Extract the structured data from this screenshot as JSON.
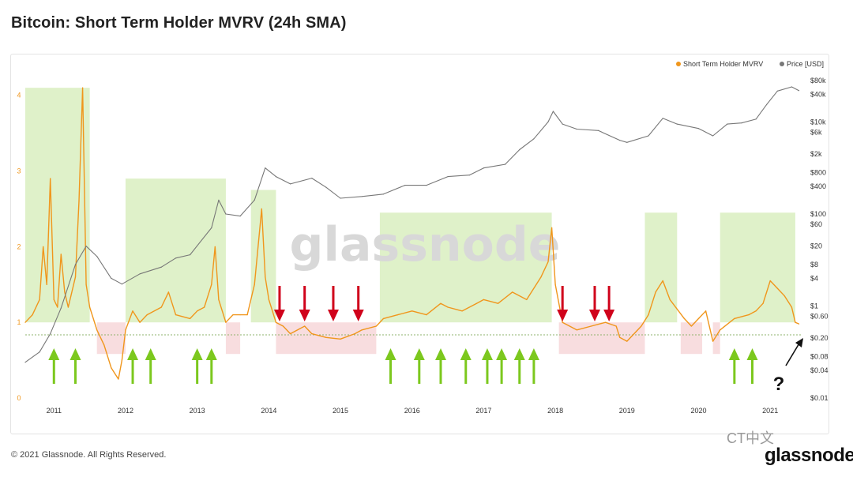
{
  "title": "Bitcoin: Short Term Holder MVRV (24h SMA)",
  "footer": "© 2021 Glassnode. All Rights Reserved.",
  "watermark": "glassnode",
  "wechat_label": "CT中文",
  "brand": "glassnode",
  "question_mark": "?",
  "colors": {
    "mvrv": "#f0961c",
    "price": "#777777",
    "green_zone": "#d9efc0",
    "red_zone": "#f7d9dc",
    "green_arrow": "#7cc81e",
    "red_arrow": "#d0021b",
    "baseline": "#8fb36e"
  },
  "chart_data": {
    "type": "line",
    "title": "Bitcoin: Short Term Holder MVRV (24h SMA)",
    "legend": {
      "placement": "top-right",
      "entries": [
        "Short Term Holder MVRV",
        "Price [USD]"
      ]
    },
    "x_ticks": [
      "2011",
      "2012",
      "2013",
      "2014",
      "2015",
      "2016",
      "2017",
      "2018",
      "2019",
      "2020",
      "2021"
    ],
    "x_range": [
      2010.6,
      2021.45
    ],
    "left_axis": {
      "ticks": [
        "0",
        "1",
        "2",
        "3",
        "4"
      ],
      "range": [
        0,
        4.3
      ]
    },
    "right_axis": {
      "scale": "log",
      "ticks": [
        "$80k",
        "$40k",
        "$10k",
        "$6k",
        "$2k",
        "$800",
        "$400",
        "$100",
        "$60",
        "$20",
        "$8",
        "$4",
        "$1",
        "$0.60",
        "$0.20",
        "$0.08",
        "$0.04",
        "$0.01"
      ]
    },
    "series": [
      {
        "name": "Short Term Holder MVRV",
        "axis": "left",
        "points": [
          [
            2010.6,
            1.0
          ],
          [
            2010.7,
            1.1
          ],
          [
            2010.8,
            1.3
          ],
          [
            2010.85,
            2.0
          ],
          [
            2010.9,
            1.5
          ],
          [
            2010.95,
            2.9
          ],
          [
            2011.0,
            1.3
          ],
          [
            2011.05,
            1.2
          ],
          [
            2011.1,
            1.9
          ],
          [
            2011.15,
            1.4
          ],
          [
            2011.2,
            1.2
          ],
          [
            2011.3,
            1.6
          ],
          [
            2011.35,
            2.6
          ],
          [
            2011.4,
            4.1
          ],
          [
            2011.45,
            1.5
          ],
          [
            2011.5,
            1.2
          ],
          [
            2011.6,
            0.9
          ],
          [
            2011.7,
            0.7
          ],
          [
            2011.8,
            0.4
          ],
          [
            2011.9,
            0.25
          ],
          [
            2011.95,
            0.5
          ],
          [
            2012.0,
            0.9
          ],
          [
            2012.1,
            1.15
          ],
          [
            2012.2,
            1.0
          ],
          [
            2012.3,
            1.1
          ],
          [
            2012.5,
            1.2
          ],
          [
            2012.6,
            1.4
          ],
          [
            2012.7,
            1.1
          ],
          [
            2012.9,
            1.05
          ],
          [
            2013.0,
            1.15
          ],
          [
            2013.1,
            1.2
          ],
          [
            2013.2,
            1.5
          ],
          [
            2013.25,
            2.0
          ],
          [
            2013.3,
            1.3
          ],
          [
            2013.4,
            1.0
          ],
          [
            2013.5,
            1.1
          ],
          [
            2013.6,
            1.1
          ],
          [
            2013.7,
            1.1
          ],
          [
            2013.8,
            1.5
          ],
          [
            2013.9,
            2.5
          ],
          [
            2013.95,
            1.6
          ],
          [
            2014.0,
            1.3
          ],
          [
            2014.1,
            1.0
          ],
          [
            2014.2,
            0.95
          ],
          [
            2014.3,
            0.85
          ],
          [
            2014.5,
            0.95
          ],
          [
            2014.6,
            0.85
          ],
          [
            2014.8,
            0.8
          ],
          [
            2015.0,
            0.78
          ],
          [
            2015.2,
            0.85
          ],
          [
            2015.3,
            0.9
          ],
          [
            2015.5,
            0.95
          ],
          [
            2015.6,
            1.05
          ],
          [
            2015.8,
            1.1
          ],
          [
            2016.0,
            1.15
          ],
          [
            2016.2,
            1.1
          ],
          [
            2016.4,
            1.25
          ],
          [
            2016.5,
            1.2
          ],
          [
            2016.7,
            1.15
          ],
          [
            2016.9,
            1.25
          ],
          [
            2017.0,
            1.3
          ],
          [
            2017.2,
            1.25
          ],
          [
            2017.4,
            1.4
          ],
          [
            2017.6,
            1.3
          ],
          [
            2017.8,
            1.6
          ],
          [
            2017.9,
            1.8
          ],
          [
            2017.95,
            2.25
          ],
          [
            2018.0,
            1.5
          ],
          [
            2018.1,
            1.0
          ],
          [
            2018.3,
            0.9
          ],
          [
            2018.5,
            0.95
          ],
          [
            2018.7,
            1.0
          ],
          [
            2018.85,
            0.95
          ],
          [
            2018.9,
            0.8
          ],
          [
            2019.0,
            0.75
          ],
          [
            2019.2,
            0.95
          ],
          [
            2019.3,
            1.1
          ],
          [
            2019.4,
            1.4
          ],
          [
            2019.5,
            1.55
          ],
          [
            2019.6,
            1.3
          ],
          [
            2019.8,
            1.05
          ],
          [
            2019.9,
            0.95
          ],
          [
            2020.0,
            1.05
          ],
          [
            2020.1,
            1.15
          ],
          [
            2020.2,
            0.75
          ],
          [
            2020.3,
            0.9
          ],
          [
            2020.5,
            1.05
          ],
          [
            2020.7,
            1.1
          ],
          [
            2020.8,
            1.15
          ],
          [
            2020.9,
            1.25
          ],
          [
            2021.0,
            1.55
          ],
          [
            2021.1,
            1.45
          ],
          [
            2021.2,
            1.35
          ],
          [
            2021.3,
            1.2
          ],
          [
            2021.35,
            1.0
          ],
          [
            2021.4,
            0.98
          ]
        ]
      },
      {
        "name": "Price [USD]",
        "axis": "right",
        "points": [
          [
            2010.6,
            0.06
          ],
          [
            2010.8,
            0.1
          ],
          [
            2010.95,
            0.25
          ],
          [
            2011.1,
            0.9
          ],
          [
            2011.3,
            8
          ],
          [
            2011.45,
            20
          ],
          [
            2011.6,
            12
          ],
          [
            2011.8,
            4
          ],
          [
            2011.95,
            3
          ],
          [
            2012.2,
            5
          ],
          [
            2012.5,
            7
          ],
          [
            2012.7,
            11
          ],
          [
            2012.9,
            13
          ],
          [
            2013.2,
            50
          ],
          [
            2013.3,
            200
          ],
          [
            2013.4,
            100
          ],
          [
            2013.6,
            90
          ],
          [
            2013.8,
            200
          ],
          [
            2013.95,
            1000
          ],
          [
            2014.1,
            650
          ],
          [
            2014.3,
            450
          ],
          [
            2014.6,
            600
          ],
          [
            2014.8,
            380
          ],
          [
            2015.0,
            220
          ],
          [
            2015.3,
            240
          ],
          [
            2015.6,
            270
          ],
          [
            2015.9,
            420
          ],
          [
            2016.2,
            420
          ],
          [
            2016.5,
            650
          ],
          [
            2016.8,
            700
          ],
          [
            2017.0,
            1000
          ],
          [
            2017.3,
            1200
          ],
          [
            2017.5,
            2500
          ],
          [
            2017.7,
            4300
          ],
          [
            2017.9,
            10000
          ],
          [
            2017.97,
            17000
          ],
          [
            2018.1,
            9000
          ],
          [
            2018.3,
            7000
          ],
          [
            2018.6,
            6500
          ],
          [
            2018.9,
            4000
          ],
          [
            2019.0,
            3600
          ],
          [
            2019.3,
            5000
          ],
          [
            2019.5,
            12000
          ],
          [
            2019.7,
            9000
          ],
          [
            2020.0,
            7200
          ],
          [
            2020.2,
            5000
          ],
          [
            2020.4,
            9000
          ],
          [
            2020.6,
            9500
          ],
          [
            2020.8,
            11500
          ],
          [
            2020.95,
            24000
          ],
          [
            2021.1,
            47000
          ],
          [
            2021.3,
            58000
          ],
          [
            2021.4,
            48000
          ]
        ]
      }
    ],
    "annotations": {
      "green_zones": [
        [
          2010.6,
          2011.5,
          4.1
        ],
        [
          2012.0,
          2013.4,
          2.9
        ],
        [
          2013.75,
          2014.1,
          2.75
        ],
        [
          2015.55,
          2017.95,
          2.45
        ],
        [
          2019.25,
          2019.7,
          2.45
        ],
        [
          2020.3,
          2021.35,
          2.45
        ]
      ],
      "red_zones": [
        [
          2011.6,
          2012.0
        ],
        [
          2013.4,
          2013.6
        ],
        [
          2014.1,
          2015.5
        ],
        [
          2018.05,
          2019.25
        ],
        [
          2019.75,
          2020.05
        ],
        [
          2020.2,
          2020.3
        ]
      ],
      "green_arrows": [
        2011.0,
        2011.3,
        2012.1,
        2012.35,
        2013.0,
        2013.2,
        2015.7,
        2016.1,
        2016.4,
        2016.75,
        2017.05,
        2017.25,
        2017.5,
        2017.7,
        2020.5,
        2020.75
      ],
      "red_arrows": [
        2014.15,
        2014.5,
        2014.9,
        2015.25,
        2018.1,
        2018.55,
        2018.75
      ],
      "question_at": 2021.0
    }
  }
}
